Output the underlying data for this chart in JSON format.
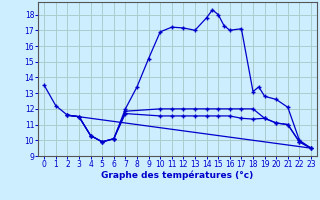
{
  "xlabel": "Graphe des températures (°c)",
  "background_color": "#cceeff",
  "grid_color": "#aacccc",
  "line_color": "#0000cc",
  "xlim": [
    -0.5,
    23.5
  ],
  "ylim": [
    9,
    18.8
  ],
  "yticks": [
    9,
    10,
    11,
    12,
    13,
    14,
    15,
    16,
    17,
    18
  ],
  "xticks": [
    0,
    1,
    2,
    3,
    4,
    5,
    6,
    7,
    8,
    9,
    10,
    11,
    12,
    13,
    14,
    15,
    16,
    17,
    18,
    19,
    20,
    21,
    22,
    23
  ],
  "curve1_x": [
    0,
    1,
    2,
    3,
    4,
    5,
    6,
    7,
    8,
    9,
    10,
    11,
    12,
    13,
    14,
    14.5,
    15,
    15.5,
    16,
    17,
    18,
    18.5,
    19,
    20,
    21,
    22,
    23
  ],
  "curve1_y": [
    13.5,
    12.2,
    11.6,
    11.5,
    10.3,
    9.9,
    10.1,
    12.0,
    13.4,
    15.2,
    16.9,
    17.2,
    17.15,
    17.0,
    17.8,
    18.3,
    18.0,
    17.3,
    17.0,
    17.1,
    13.1,
    13.4,
    12.8,
    12.6,
    12.1,
    10.0,
    9.5
  ],
  "curve2_x": [
    2,
    3,
    4,
    5,
    6,
    7,
    10,
    11,
    12,
    13,
    14,
    15,
    16,
    17,
    18,
    19,
    20,
    21,
    22,
    23
  ],
  "curve2_y": [
    11.6,
    11.5,
    10.3,
    9.9,
    10.1,
    11.85,
    12.0,
    12.0,
    12.0,
    12.0,
    12.0,
    12.0,
    12.0,
    12.0,
    12.0,
    11.4,
    11.1,
    11.0,
    9.9,
    9.5
  ],
  "curve3_x": [
    2,
    3,
    4,
    5,
    6,
    7,
    10,
    11,
    12,
    13,
    14,
    15,
    16,
    17,
    18,
    19,
    20,
    21,
    22,
    23
  ],
  "curve3_y": [
    11.6,
    11.5,
    10.3,
    9.9,
    10.1,
    11.7,
    11.55,
    11.55,
    11.55,
    11.55,
    11.55,
    11.55,
    11.55,
    11.4,
    11.35,
    11.4,
    11.1,
    11.0,
    9.9,
    9.5
  ],
  "curve4_x": [
    2,
    23
  ],
  "curve4_y": [
    11.6,
    9.5
  ]
}
